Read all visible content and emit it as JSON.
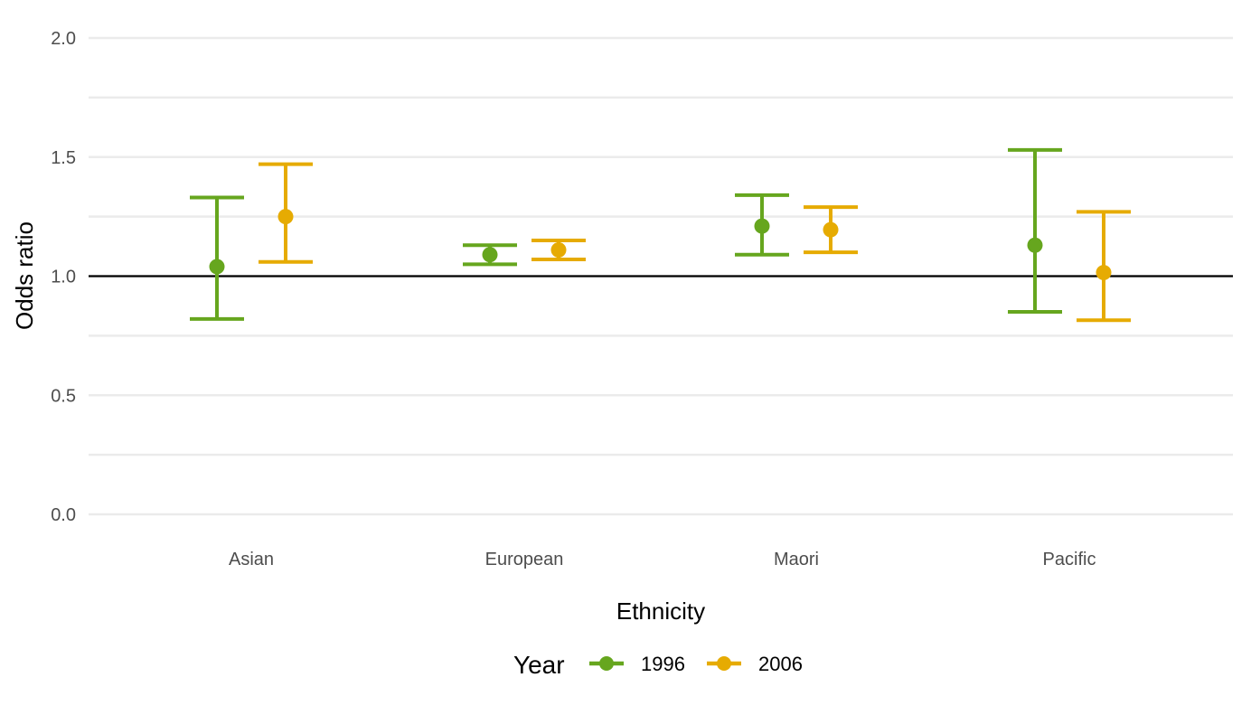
{
  "chart_data": {
    "type": "errorbar",
    "xlabel": "Ethnicity",
    "ylabel": "Odds ratio",
    "categories": [
      "Asian",
      "European",
      "Maori",
      "Pacific"
    ],
    "ylim": [
      0,
      2
    ],
    "yticks": [
      "0.0",
      "0.5",
      "1.0",
      "1.5",
      "2.0"
    ],
    "reference_line": 1.0,
    "grid": true,
    "legend": {
      "title": "Year",
      "position": "bottom"
    },
    "series": [
      {
        "name": "1996",
        "color": "#66A61E",
        "points": [
          {
            "x": "Asian",
            "y": 1.04,
            "lower": 0.82,
            "upper": 1.33
          },
          {
            "x": "European",
            "y": 1.09,
            "lower": 1.05,
            "upper": 1.13
          },
          {
            "x": "Maori",
            "y": 1.21,
            "lower": 1.09,
            "upper": 1.34
          },
          {
            "x": "Pacific",
            "y": 1.13,
            "lower": 0.85,
            "upper": 1.53
          }
        ]
      },
      {
        "name": "2006",
        "color": "#E6AB02",
        "points": [
          {
            "x": "Asian",
            "y": 1.25,
            "lower": 1.06,
            "upper": 1.47
          },
          {
            "x": "European",
            "y": 1.11,
            "lower": 1.07,
            "upper": 1.15
          },
          {
            "x": "Maori",
            "y": 1.195,
            "lower": 1.1,
            "upper": 1.29
          },
          {
            "x": "Pacific",
            "y": 1.015,
            "lower": 0.815,
            "upper": 1.27
          }
        ]
      }
    ]
  }
}
